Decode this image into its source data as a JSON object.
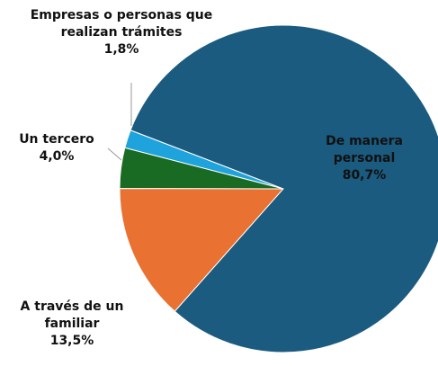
{
  "chart_data": {
    "type": "pie",
    "categories": [
      "De manera personal",
      "A través de un familiar",
      "Un tercero",
      "Empresas o personas que realizan trámites"
    ],
    "values": [
      80.7,
      13.5,
      4.0,
      1.8
    ],
    "value_labels": [
      "80,7%",
      "13,5%",
      "4,0%",
      "1,8%"
    ],
    "colors": [
      "#1b5b7f",
      "#e97132",
      "#196b24",
      "#1fa3dc"
    ]
  }
}
